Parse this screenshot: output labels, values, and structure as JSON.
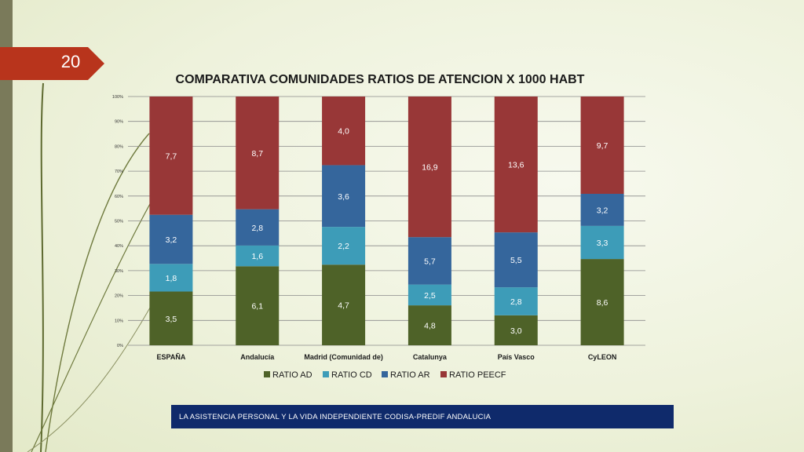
{
  "slide": {
    "number": "20"
  },
  "footer": {
    "text": "LA ASISTENCIA PERSONAL Y LA VIDA INDEPENDIENTE CODISA-PREDIF ANDALUCIA"
  },
  "colors": {
    "badge": "#b8341c",
    "footer": "#0f2a6b",
    "RATIO AD": "#4e6228",
    "RATIO CD": "#3d9cb8",
    "RATIO AR": "#35669c",
    "RATIO PEECF": "#983737"
  },
  "chart_data": {
    "type": "bar",
    "stacked": "percent",
    "title": "COMPARATIVA COMUNIDADES RATIOS  DE ATENCION X 1000 HABT",
    "categories": [
      "ESPAÑA",
      "Andalucía",
      "Madrid (Comunidad de)",
      "Catalunya",
      "País Vasco",
      "CyLEON"
    ],
    "series": [
      {
        "name": "RATIO AD",
        "values": [
          3.5,
          6.1,
          4.7,
          4.8,
          3.0,
          8.6
        ],
        "labels": [
          "3,5",
          "6,1",
          "4,7",
          "4,8",
          "3,0",
          "8,6"
        ]
      },
      {
        "name": "RATIO CD",
        "values": [
          1.8,
          1.6,
          2.2,
          2.5,
          2.8,
          3.3
        ],
        "labels": [
          "1,8",
          "1,6",
          "2,2",
          "2,5",
          "2,8",
          "3,3"
        ]
      },
      {
        "name": "RATIO AR",
        "values": [
          3.2,
          2.8,
          3.6,
          5.7,
          5.5,
          3.2
        ],
        "labels": [
          "3,2",
          "2,8",
          "3,6",
          "5,7",
          "5,5",
          "3,2"
        ]
      },
      {
        "name": "RATIO PEECF",
        "values": [
          7.7,
          8.7,
          4.0,
          16.9,
          13.6,
          9.7
        ],
        "labels": [
          "7,7",
          "8,7",
          "4,0",
          "16,9",
          "13,6",
          "9,7"
        ]
      }
    ],
    "y_ticks": [
      "0%",
      "10%",
      "20%",
      "30%",
      "40%",
      "50%",
      "60%",
      "70%",
      "80%",
      "90%",
      "100%"
    ],
    "ylim": [
      0,
      100
    ],
    "grid": true,
    "legend": "bottom"
  }
}
